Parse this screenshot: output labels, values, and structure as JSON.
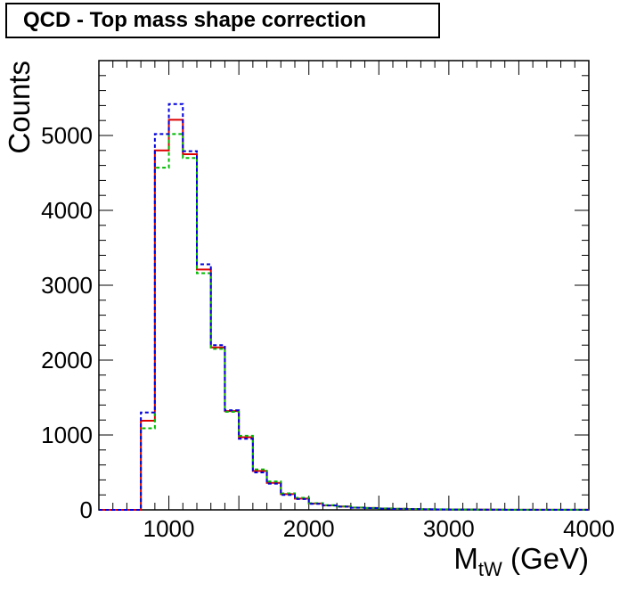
{
  "chart_data": {
    "type": "line",
    "title": "QCD - Top mass shape correction",
    "xlabel_main": "M",
    "xlabel_sub": "tW",
    "xlabel_unit": " (GeV)",
    "ylabel": "Counts",
    "xlim": [
      500,
      4000
    ],
    "ylim": [
      0,
      6000
    ],
    "x_ticks": [
      1000,
      2000,
      3000,
      4000
    ],
    "y_ticks": [
      0,
      1000,
      2000,
      3000,
      4000,
      5000
    ],
    "x_tick_labels": [
      "1000",
      "2000",
      "3000",
      "4000"
    ],
    "y_tick_labels": [
      "0",
      "1000",
      "2000",
      "3000",
      "4000",
      "5000"
    ],
    "bin_edges": [
      500,
      600,
      700,
      800,
      900,
      1000,
      1100,
      1200,
      1300,
      1400,
      1500,
      1600,
      1700,
      1800,
      1900,
      2000,
      2100,
      2200,
      2300,
      2400,
      2500,
      2600,
      2700,
      2800,
      2900,
      3000,
      3100,
      3200,
      3300,
      3400,
      3500,
      3600,
      3700,
      3800,
      3900,
      4000
    ],
    "series": [
      {
        "color": "#dd0000",
        "style": "solid",
        "values": [
          0,
          0,
          0,
          1190,
          4800,
          5210,
          4750,
          3210,
          2170,
          1320,
          970,
          520,
          360,
          210,
          150,
          85,
          60,
          45,
          30,
          25,
          18,
          14,
          10,
          8,
          6,
          5,
          4,
          3,
          3,
          2,
          2,
          2,
          1,
          1,
          1
        ]
      },
      {
        "color": "#00bb00",
        "style": "dashed",
        "values": [
          0,
          0,
          0,
          1090,
          4570,
          5020,
          4700,
          3160,
          2150,
          1310,
          990,
          540,
          380,
          220,
          160,
          90,
          62,
          46,
          31,
          26,
          19,
          15,
          11,
          9,
          7,
          5,
          4,
          3,
          3,
          2,
          2,
          2,
          1,
          1,
          1
        ]
      },
      {
        "color": "#0000dd",
        "style": "dashed",
        "values": [
          0,
          0,
          0,
          1300,
          5020,
          5420,
          4790,
          3280,
          2200,
          1330,
          950,
          500,
          350,
          200,
          145,
          80,
          58,
          43,
          29,
          24,
          17,
          13,
          10,
          8,
          6,
          5,
          4,
          3,
          3,
          2,
          2,
          2,
          1,
          1,
          1
        ]
      }
    ]
  }
}
